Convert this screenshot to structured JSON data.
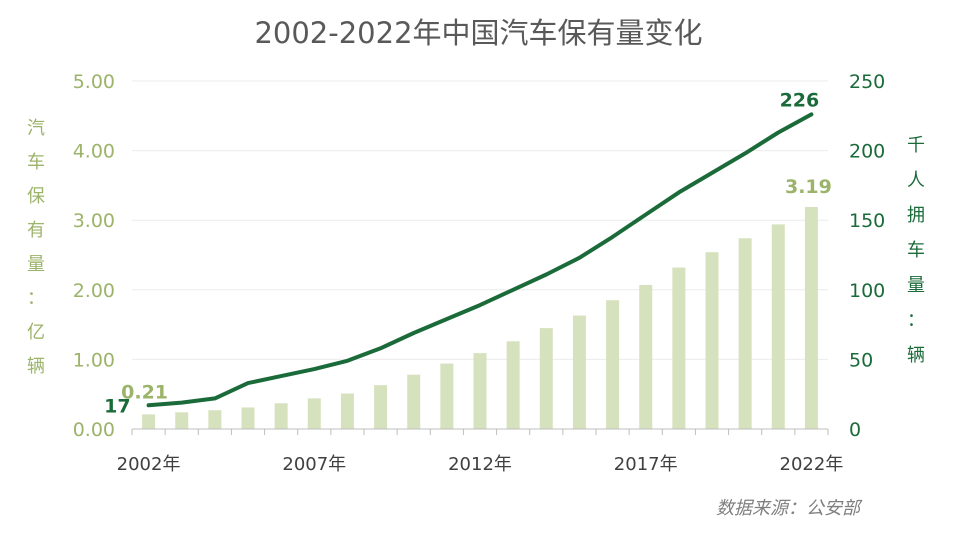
{
  "chart_data": {
    "type": "bar+line",
    "title": "2002-2022年中国汽车保有量变化",
    "categories": [
      "2002",
      "2003",
      "2004",
      "2005",
      "2006",
      "2007",
      "2008",
      "2009",
      "2010",
      "2011",
      "2012",
      "2013",
      "2014",
      "2015",
      "2016",
      "2017",
      "2018",
      "2019",
      "2020",
      "2021",
      "2022"
    ],
    "x_tick_labels": [
      "2002年",
      "2007年",
      "2012年",
      "2017年",
      "2022年"
    ],
    "series": [
      {
        "type": "bar",
        "axis": "left",
        "color": "#d6e2bd",
        "values": [
          0.21,
          0.24,
          0.27,
          0.31,
          0.37,
          0.44,
          0.51,
          0.63,
          0.78,
          0.94,
          1.09,
          1.26,
          1.45,
          1.63,
          1.85,
          2.07,
          2.32,
          2.54,
          2.74,
          2.94,
          3.19
        ]
      },
      {
        "type": "line",
        "axis": "right",
        "color": "#1b6b3a",
        "values": [
          17,
          19,
          22,
          33,
          38,
          43,
          49,
          58,
          69,
          79,
          89,
          100,
          111,
          123,
          138,
          154,
          170,
          184,
          198,
          213,
          226
        ]
      }
    ],
    "left_axis": {
      "label": "汽车保有量：亿辆",
      "label_chars": [
        "汽",
        "车",
        "保",
        "有",
        "量",
        "：",
        "亿",
        "辆"
      ],
      "ticks": [
        "0.00",
        "1.00",
        "2.00",
        "3.00",
        "4.00",
        "5.00"
      ],
      "ylim": [
        0,
        5
      ],
      "color": "#9cb36a"
    },
    "right_axis": {
      "label": "千人拥车量：辆",
      "label_chars": [
        "千",
        "人",
        "拥",
        "车",
        "量",
        "：",
        "辆"
      ],
      "ticks": [
        "0",
        "50",
        "100",
        "150",
        "200",
        "250"
      ],
      "ylim": [
        0,
        250
      ],
      "color": "#1b6b3a"
    },
    "annotations": {
      "bar_first": "0.21",
      "bar_last": "3.19",
      "line_first": "17",
      "line_last": "226"
    },
    "grid": true,
    "source": "数据来源：公安部"
  }
}
